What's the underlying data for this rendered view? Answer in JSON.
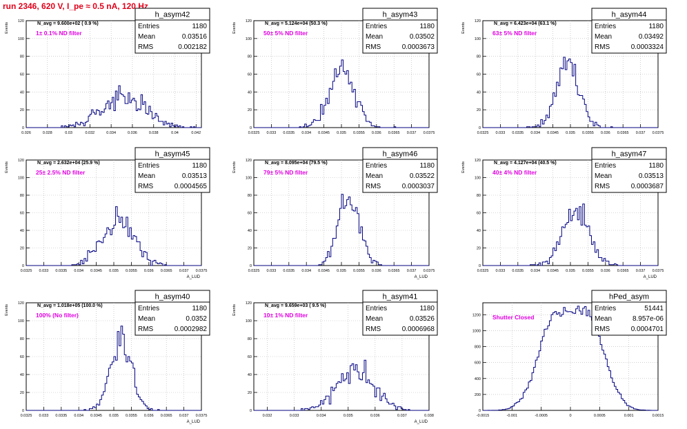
{
  "page": {
    "title": "run 2346,   620 V, I_pe ≈ 0.5 nA, 120 Hz"
  },
  "colors": {
    "histogram": "#000080",
    "title": "#e0001a",
    "annotation": "#e000e0",
    "grid": "#b0b0b0"
  },
  "chart_data": [
    {
      "type": "histogram",
      "name": "h_asym42",
      "navg": "N_avg = 9.600e+02 ( 0.9 %)",
      "annotation": "1± 0.1% ND filter",
      "stats": {
        "Entries": "1180",
        "Mean": "0.03516",
        "RMS": "0.002182"
      },
      "xlim": [
        0.026,
        0.0425
      ],
      "ylim": [
        0,
        120
      ],
      "xticks": [
        0.026,
        0.028,
        0.03,
        0.032,
        0.034,
        0.036,
        0.038,
        0.04,
        0.042
      ],
      "xticklabels": [
        "0.026",
        "0.028",
        "0.03",
        "0.032",
        "0.034",
        "0.036",
        "0.038",
        "0.04",
        "0.042"
      ],
      "yticks": [
        0,
        20,
        40,
        60,
        80,
        100,
        120
      ],
      "ylabel": "Events",
      "xlabel": "",
      "shape": {
        "type": "gauss",
        "mean": 0.03516,
        "rms": 0.002182,
        "entries": 1180,
        "nbins": 110,
        "seed": 42
      }
    },
    {
      "type": "histogram",
      "name": "h_asym43",
      "navg": "N_avg = 5.124e+04 (50.3 %)",
      "annotation": "50± 5% ND filter",
      "stats": {
        "Entries": "1180",
        "Mean": "0.03502",
        "RMS": "0.0003673"
      },
      "xlim": [
        0.0325,
        0.0375
      ],
      "ylim": [
        0,
        120
      ],
      "xticks": [
        0.0325,
        0.033,
        0.0335,
        0.034,
        0.0345,
        0.035,
        0.0355,
        0.036,
        0.0365,
        0.037,
        0.0375
      ],
      "xticklabels": [
        "0.0325",
        "0.033",
        "0.0335",
        "0.034",
        "0.0345",
        "0.035",
        "0.0355",
        "0.036",
        "0.0365",
        "0.037",
        "0.0375"
      ],
      "yticks": [
        0,
        20,
        40,
        60,
        80,
        100,
        120
      ],
      "ylabel": "Events",
      "xlabel": "",
      "shape": {
        "type": "gauss",
        "mean": 0.03502,
        "rms": 0.0003673,
        "entries": 1180,
        "nbins": 100,
        "seed": 43
      }
    },
    {
      "type": "histogram",
      "name": "h_asym44",
      "navg": "N_avg = 6.423e+04 (63.1 %)",
      "annotation": "63± 5% ND filter",
      "stats": {
        "Entries": "1180",
        "Mean": "0.03492",
        "RMS": "0.0003324"
      },
      "xlim": [
        0.0325,
        0.0375
      ],
      "ylim": [
        0,
        120
      ],
      "xticks": [
        0.0325,
        0.033,
        0.0335,
        0.034,
        0.0345,
        0.035,
        0.0355,
        0.036,
        0.0365,
        0.037,
        0.0375
      ],
      "xticklabels": [
        "0.0325",
        "0.033",
        "0.0335",
        "0.034",
        "0.0345",
        "0.035",
        "0.0355",
        "0.036",
        "0.0365",
        "0.037",
        "0.0375"
      ],
      "yticks": [
        0,
        20,
        40,
        60,
        80,
        100,
        120
      ],
      "ylabel": "Events",
      "xlabel": "",
      "shape": {
        "type": "gauss",
        "mean": 0.03492,
        "rms": 0.0003324,
        "entries": 1180,
        "nbins": 100,
        "seed": 44
      }
    },
    {
      "type": "histogram",
      "name": "h_asym45",
      "navg": "N_avg = 2.632e+04 (25.9 %)",
      "annotation": "25± 2.5% ND filter",
      "stats": {
        "Entries": "1180",
        "Mean": "0.03513",
        "RMS": "0.0004565"
      },
      "xlim": [
        0.0325,
        0.0375
      ],
      "ylim": [
        0,
        120
      ],
      "xticks": [
        0.0325,
        0.033,
        0.0335,
        0.034,
        0.0345,
        0.035,
        0.0355,
        0.036,
        0.0365,
        0.037,
        0.0375
      ],
      "xticklabels": [
        "0.0325",
        "0.033",
        "0.0335",
        "0.034",
        "0.0345",
        "0.035",
        "0.0355",
        "0.036",
        "0.0365",
        "0.037",
        "0.0375"
      ],
      "yticks": [
        0,
        20,
        40,
        60,
        80,
        100,
        120
      ],
      "ylabel": "Events",
      "xlabel": "A_LUD",
      "shape": {
        "type": "gauss",
        "mean": 0.03513,
        "rms": 0.0004565,
        "entries": 1180,
        "nbins": 100,
        "seed": 45
      }
    },
    {
      "type": "histogram",
      "name": "h_asym46",
      "navg": "N_avg = 8.095e+04 (79.5 %)",
      "annotation": "79± 5% ND filter",
      "stats": {
        "Entries": "1180",
        "Mean": "0.03522",
        "RMS": "0.0003037"
      },
      "xlim": [
        0.0325,
        0.0375
      ],
      "ylim": [
        0,
        120
      ],
      "xticks": [
        0.0325,
        0.033,
        0.0335,
        0.034,
        0.0345,
        0.035,
        0.0355,
        0.036,
        0.0365,
        0.037,
        0.0375
      ],
      "xticklabels": [
        "0.0325",
        "0.033",
        "0.0335",
        "0.034",
        "0.0345",
        "0.035",
        "0.0355",
        "0.036",
        "0.0365",
        "0.037",
        "0.0375"
      ],
      "yticks": [
        0,
        20,
        40,
        60,
        80,
        100,
        120
      ],
      "ylabel": "Events",
      "xlabel": "A_LUD",
      "shape": {
        "type": "gauss",
        "mean": 0.03522,
        "rms": 0.0003037,
        "entries": 1180,
        "nbins": 100,
        "seed": 46
      }
    },
    {
      "type": "histogram",
      "name": "h_asym47",
      "navg": "N_avg = 4.127e+04 (40.5 %)",
      "annotation": "40± 4% ND filter",
      "stats": {
        "Entries": "1180",
        "Mean": "0.03513",
        "RMS": "0.0003687"
      },
      "xlim": [
        0.0325,
        0.0375
      ],
      "ylim": [
        0,
        120
      ],
      "xticks": [
        0.0325,
        0.033,
        0.0335,
        0.034,
        0.0345,
        0.035,
        0.0355,
        0.036,
        0.0365,
        0.037,
        0.0375
      ],
      "xticklabels": [
        "0.0325",
        "0.033",
        "0.0335",
        "0.034",
        "0.0345",
        "0.035",
        "0.0355",
        "0.036",
        "0.0365",
        "0.037",
        "0.0375"
      ],
      "yticks": [
        0,
        20,
        40,
        60,
        80,
        100,
        120
      ],
      "ylabel": "Events",
      "xlabel": "A_LUD",
      "shape": {
        "type": "gauss",
        "mean": 0.03513,
        "rms": 0.0003687,
        "entries": 1180,
        "nbins": 100,
        "seed": 47
      }
    },
    {
      "type": "histogram",
      "name": "h_asym40",
      "navg": "N_avg = 1.018e+05 (100.0 %)",
      "annotation": "100% (No filter)",
      "stats": {
        "Entries": "1180",
        "Mean": "0.0352",
        "RMS": "0.0002982"
      },
      "xlim": [
        0.0325,
        0.0375
      ],
      "ylim": [
        0,
        120
      ],
      "xticks": [
        0.0325,
        0.033,
        0.0335,
        0.034,
        0.0345,
        0.035,
        0.0355,
        0.036,
        0.0365,
        0.037,
        0.0375
      ],
      "xticklabels": [
        "0.0325",
        "0.033",
        "0.0335",
        "0.034",
        "0.0345",
        "0.035",
        "0.0355",
        "0.036",
        "0.0365",
        "0.037",
        "0.0375"
      ],
      "yticks": [
        0,
        20,
        40,
        60,
        80,
        100,
        120
      ],
      "ylabel": "Events",
      "xlabel": "A_LUD",
      "shape": {
        "type": "gauss",
        "mean": 0.0352,
        "rms": 0.0002982,
        "entries": 1180,
        "nbins": 100,
        "seed": 40
      }
    },
    {
      "type": "histogram",
      "name": "h_asym41",
      "navg": "N_avg = 9.659e+03 ( 9.5 %)",
      "annotation": "10± 1% ND filter",
      "stats": {
        "Entries": "1180",
        "Mean": "0.03526",
        "RMS": "0.0006968"
      },
      "xlim": [
        0.0315,
        0.038
      ],
      "ylim": [
        0,
        120
      ],
      "xticks": [
        0.032,
        0.033,
        0.034,
        0.035,
        0.036,
        0.037,
        0.038
      ],
      "xticklabels": [
        "0.032",
        "0.033",
        "0.034",
        "0.035",
        "0.036",
        "0.037",
        "0.038"
      ],
      "yticks": [
        0,
        20,
        40,
        60,
        80,
        100,
        120
      ],
      "ylabel": "Events",
      "xlabel": "A_LUD",
      "shape": {
        "type": "gauss",
        "mean": 0.03526,
        "rms": 0.0006968,
        "entries": 1180,
        "nbins": 100,
        "seed": 41
      }
    },
    {
      "type": "histogram",
      "name": "hPed_asym",
      "navg": "",
      "annotation": "Shutter Closed",
      "stats": {
        "Entries": "51441",
        "Mean": "8.957e-06",
        "RMS": "0.0004701"
      },
      "xlim": [
        -0.0015,
        0.0015
      ],
      "ylim": [
        0,
        1350
      ],
      "xticks": [
        -0.0015,
        -0.001,
        -0.0005,
        0,
        0.0005,
        0.001,
        0.0015
      ],
      "xticklabels": [
        "-0.0015",
        "-0.001",
        "-0.0005",
        "0",
        "0.0005",
        "0.001",
        "0.0015"
      ],
      "yticks": [
        0,
        200,
        400,
        600,
        800,
        1000,
        1200
      ],
      "ylabel": "",
      "xlabel": "",
      "shape": {
        "type": "bimodal",
        "entries": 51441,
        "nbins": 100,
        "centers": [
          -0.00028,
          0.00032
        ],
        "width": 0.00028,
        "seed": 99
      }
    }
  ]
}
